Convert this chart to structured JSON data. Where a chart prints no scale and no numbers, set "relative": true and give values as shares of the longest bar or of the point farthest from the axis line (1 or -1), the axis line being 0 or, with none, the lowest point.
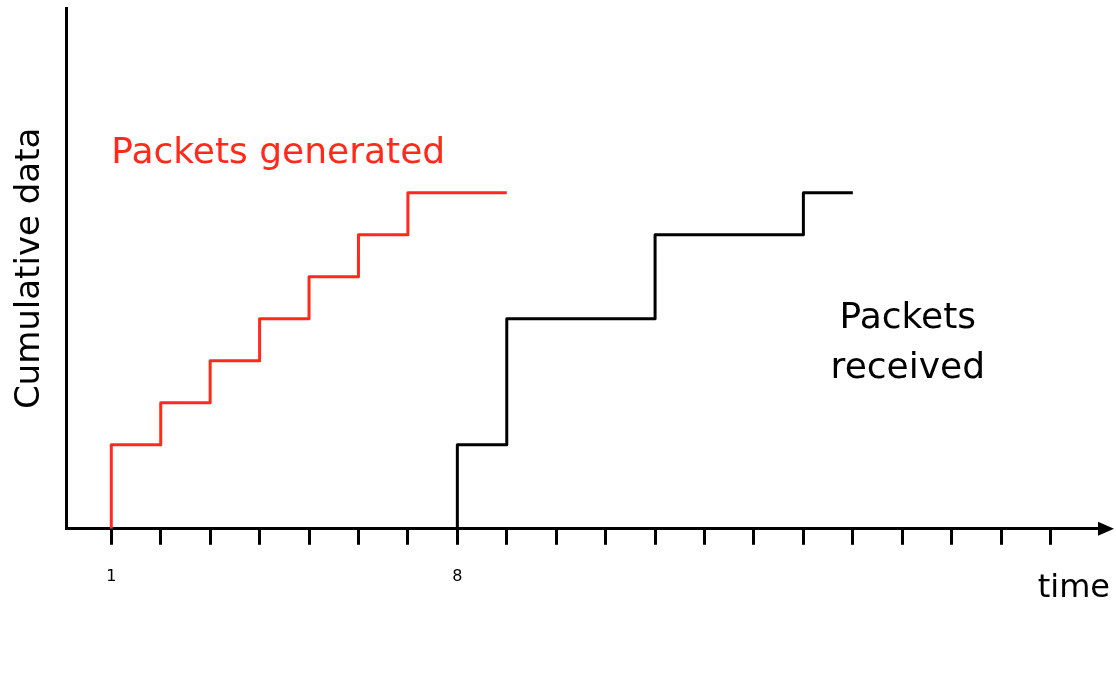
{
  "chart_data": {
    "type": "step",
    "relative": true,
    "xlabel": "time",
    "ylabel": "Cumulative data",
    "xlim": [
      0.1,
      21
    ],
    "xticks": [
      1,
      {
        "value": 2,
        "label": null
      },
      {
        "value": 3,
        "label": null
      },
      {
        "value": 4,
        "label": null
      },
      {
        "value": 5,
        "label": null
      },
      {
        "value": 6,
        "label": null
      },
      {
        "value": 7,
        "label": null
      },
      8,
      {
        "value": 9,
        "label": null
      },
      {
        "value": 10,
        "label": null
      },
      {
        "value": 11,
        "label": null
      },
      {
        "value": 12,
        "label": null
      },
      {
        "value": 13,
        "label": null
      },
      {
        "value": 14,
        "label": null
      },
      {
        "value": 15,
        "label": null
      },
      {
        "value": 16,
        "label": null
      },
      {
        "value": 17,
        "label": null
      },
      {
        "value": 18,
        "label": null
      },
      {
        "value": 19,
        "label": null
      },
      {
        "value": 20,
        "label": null
      }
    ],
    "grid": false,
    "legend": false,
    "marker": "none",
    "line_style": "solid",
    "series": [
      {
        "name": "Packets generated",
        "color": "#ff2a1a",
        "x": [
          1,
          1,
          2,
          3,
          4,
          5,
          6,
          7,
          8,
          9
        ],
        "values": [
          0,
          0.125,
          0.25,
          0.375,
          0.5,
          0.625,
          0.75,
          0.875,
          1,
          1
        ]
      },
      {
        "name": "Packets received",
        "color": "#000000",
        "x": [
          8,
          8,
          9,
          12,
          15,
          16
        ],
        "values": [
          0,
          0.125,
          0.25,
          0.625,
          0.875,
          1
        ]
      }
    ]
  }
}
